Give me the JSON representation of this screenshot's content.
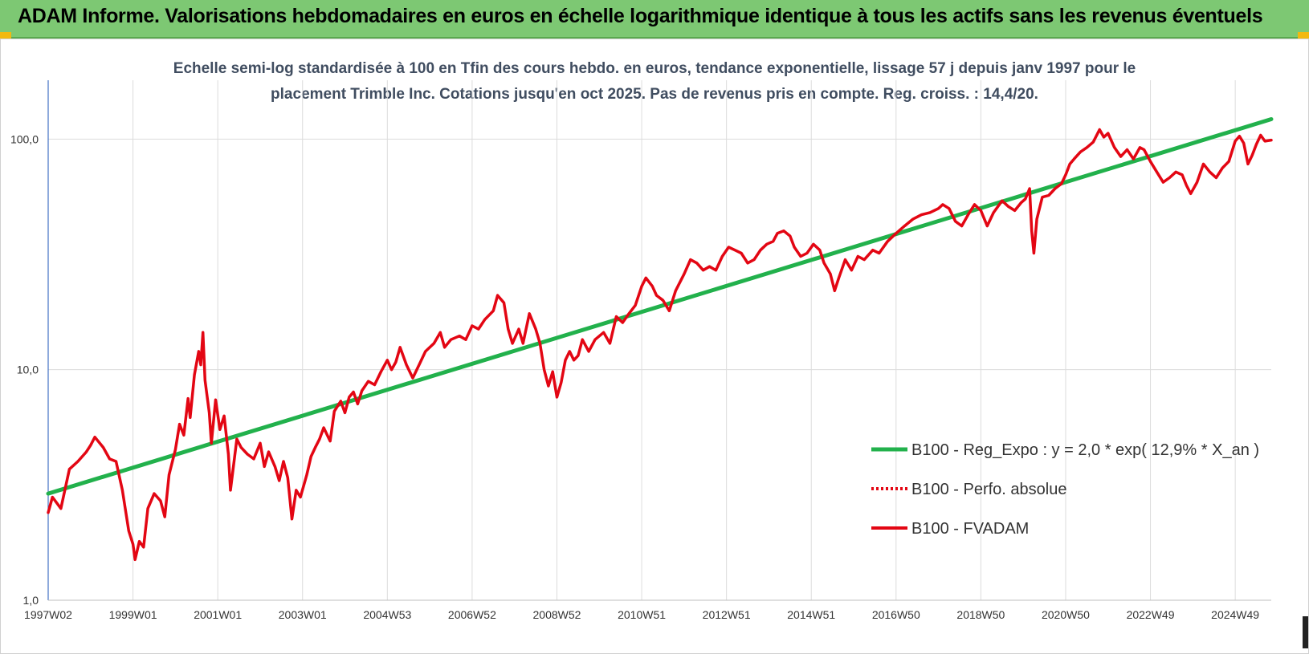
{
  "header": {
    "title": "ADAM Informe. Valorisations hebdomadaires en euros en échelle logarithmique identique à tous les actifs sans les revenus éventuels"
  },
  "chart_data": {
    "type": "line",
    "subtitle_line1": "Echelle semi-log standardisée à 100 en Tfin des cours hebdo. en euros, tendance exponentielle, lissage 57 j depuis janv 1997 pour le",
    "subtitle_line2": "placement Trimble Inc. Cotations jusqu'en oct 2025. Pas de revenus pris en compte. Reg. croiss. : 14,4/20.",
    "y_scale": "log",
    "ylim": [
      1,
      180
    ],
    "y_ticks": [
      {
        "value": 1,
        "label": "1,0"
      },
      {
        "value": 10,
        "label": "10,0"
      },
      {
        "value": 100,
        "label": "100,0"
      }
    ],
    "x_range": [
      1997.0,
      2025.85
    ],
    "x_ticks": [
      {
        "x": 1997.0,
        "label": "1997W02"
      },
      {
        "x": 1999.0,
        "label": "1999W01"
      },
      {
        "x": 2001.0,
        "label": "2001W01"
      },
      {
        "x": 2003.0,
        "label": "2003W01"
      },
      {
        "x": 2005.0,
        "label": "2004W53"
      },
      {
        "x": 2007.0,
        "label": "2006W52"
      },
      {
        "x": 2009.0,
        "label": "2008W52"
      },
      {
        "x": 2011.0,
        "label": "2010W51"
      },
      {
        "x": 2013.0,
        "label": "2012W51"
      },
      {
        "x": 2015.0,
        "label": "2014W51"
      },
      {
        "x": 2017.0,
        "label": "2016W50"
      },
      {
        "x": 2019.0,
        "label": "2018W50"
      },
      {
        "x": 2021.0,
        "label": "2020W50"
      },
      {
        "x": 2023.0,
        "label": "2022W49"
      },
      {
        "x": 2025.0,
        "label": "2024W49"
      }
    ],
    "grid": true,
    "legend_position": "right-middle",
    "series": [
      {
        "name": "B100 - Reg_Expo : y = 2,0 * exp( 12,9% * X_an )",
        "color": "#22b14c",
        "style": "solid",
        "points": [
          [
            1997.0,
            2.9
          ],
          [
            2025.85,
            122
          ]
        ]
      },
      {
        "name": "B100 - Perfo. absolue",
        "color": "#e30613",
        "style": "dotted",
        "points": []
      },
      {
        "name": "B100 - FVADAM",
        "color": "#e30613",
        "style": "solid",
        "points": [
          [
            1997.0,
            2.4
          ],
          [
            1997.1,
            2.8
          ],
          [
            1997.3,
            2.5
          ],
          [
            1997.5,
            3.7
          ],
          [
            1997.7,
            4.0
          ],
          [
            1997.9,
            4.4
          ],
          [
            1998.0,
            4.7
          ],
          [
            1998.1,
            5.1
          ],
          [
            1998.3,
            4.6
          ],
          [
            1998.45,
            4.1
          ],
          [
            1998.6,
            4.0
          ],
          [
            1998.75,
            3.0
          ],
          [
            1998.9,
            2.0
          ],
          [
            1999.0,
            1.75
          ],
          [
            1999.05,
            1.5
          ],
          [
            1999.15,
            1.8
          ],
          [
            1999.25,
            1.7
          ],
          [
            1999.35,
            2.5
          ],
          [
            1999.5,
            2.9
          ],
          [
            1999.65,
            2.7
          ],
          [
            1999.75,
            2.3
          ],
          [
            1999.85,
            3.5
          ],
          [
            2000.0,
            4.5
          ],
          [
            2000.1,
            5.8
          ],
          [
            2000.2,
            5.2
          ],
          [
            2000.3,
            7.5
          ],
          [
            2000.35,
            6.2
          ],
          [
            2000.45,
            9.5
          ],
          [
            2000.55,
            12.0
          ],
          [
            2000.6,
            10.5
          ],
          [
            2000.65,
            14.5
          ],
          [
            2000.7,
            9.0
          ],
          [
            2000.8,
            6.5
          ],
          [
            2000.85,
            4.8
          ],
          [
            2000.95,
            7.4
          ],
          [
            2001.05,
            5.5
          ],
          [
            2001.15,
            6.3
          ],
          [
            2001.25,
            4.3
          ],
          [
            2001.3,
            3.0
          ],
          [
            2001.45,
            5.0
          ],
          [
            2001.55,
            4.6
          ],
          [
            2001.7,
            4.3
          ],
          [
            2001.85,
            4.1
          ],
          [
            2002.0,
            4.8
          ],
          [
            2002.1,
            3.8
          ],
          [
            2002.2,
            4.4
          ],
          [
            2002.35,
            3.8
          ],
          [
            2002.45,
            3.3
          ],
          [
            2002.55,
            4.0
          ],
          [
            2002.65,
            3.4
          ],
          [
            2002.75,
            2.25
          ],
          [
            2002.85,
            3.0
          ],
          [
            2002.95,
            2.8
          ],
          [
            2003.1,
            3.5
          ],
          [
            2003.2,
            4.2
          ],
          [
            2003.3,
            4.6
          ],
          [
            2003.4,
            5.0
          ],
          [
            2003.5,
            5.6
          ],
          [
            2003.65,
            4.9
          ],
          [
            2003.75,
            6.6
          ],
          [
            2003.9,
            7.3
          ],
          [
            2004.0,
            6.5
          ],
          [
            2004.1,
            7.6
          ],
          [
            2004.2,
            8.0
          ],
          [
            2004.3,
            7.1
          ],
          [
            2004.4,
            8.1
          ],
          [
            2004.55,
            8.9
          ],
          [
            2004.7,
            8.6
          ],
          [
            2004.85,
            9.8
          ],
          [
            2005.0,
            11.0
          ],
          [
            2005.1,
            10.0
          ],
          [
            2005.2,
            10.8
          ],
          [
            2005.3,
            12.5
          ],
          [
            2005.45,
            10.5
          ],
          [
            2005.6,
            9.2
          ],
          [
            2005.75,
            10.5
          ],
          [
            2005.9,
            12.0
          ],
          [
            2006.1,
            13.0
          ],
          [
            2006.25,
            14.5
          ],
          [
            2006.35,
            12.5
          ],
          [
            2006.5,
            13.5
          ],
          [
            2006.7,
            14.0
          ],
          [
            2006.85,
            13.5
          ],
          [
            2007.0,
            15.5
          ],
          [
            2007.15,
            15.0
          ],
          [
            2007.3,
            16.5
          ],
          [
            2007.5,
            18.0
          ],
          [
            2007.6,
            21.0
          ],
          [
            2007.75,
            19.5
          ],
          [
            2007.85,
            15.0
          ],
          [
            2007.95,
            13.0
          ],
          [
            2008.1,
            15.0
          ],
          [
            2008.2,
            13.0
          ],
          [
            2008.35,
            17.5
          ],
          [
            2008.5,
            15.0
          ],
          [
            2008.6,
            13.0
          ],
          [
            2008.7,
            10.0
          ],
          [
            2008.8,
            8.5
          ],
          [
            2008.9,
            9.8
          ],
          [
            2009.0,
            7.6
          ],
          [
            2009.1,
            8.8
          ],
          [
            2009.2,
            11.0
          ],
          [
            2009.3,
            12.0
          ],
          [
            2009.4,
            11.0
          ],
          [
            2009.5,
            11.5
          ],
          [
            2009.6,
            13.5
          ],
          [
            2009.75,
            12.0
          ],
          [
            2009.9,
            13.5
          ],
          [
            2010.1,
            14.5
          ],
          [
            2010.25,
            13.0
          ],
          [
            2010.4,
            17.0
          ],
          [
            2010.55,
            16.0
          ],
          [
            2010.7,
            17.5
          ],
          [
            2010.85,
            19.0
          ],
          [
            2011.0,
            23.0
          ],
          [
            2011.1,
            25.0
          ],
          [
            2011.25,
            23.0
          ],
          [
            2011.35,
            21.0
          ],
          [
            2011.5,
            20.0
          ],
          [
            2011.65,
            18.0
          ],
          [
            2011.8,
            22.0
          ],
          [
            2012.0,
            26.0
          ],
          [
            2012.15,
            30.0
          ],
          [
            2012.3,
            29.0
          ],
          [
            2012.45,
            27.0
          ],
          [
            2012.6,
            28.0
          ],
          [
            2012.75,
            27.0
          ],
          [
            2012.9,
            31.0
          ],
          [
            2013.05,
            34.0
          ],
          [
            2013.2,
            33.0
          ],
          [
            2013.35,
            32.0
          ],
          [
            2013.5,
            29.0
          ],
          [
            2013.65,
            30.0
          ],
          [
            2013.8,
            33.0
          ],
          [
            2013.95,
            35.0
          ],
          [
            2014.1,
            36.0
          ],
          [
            2014.2,
            39.0
          ],
          [
            2014.35,
            40.0
          ],
          [
            2014.5,
            38.0
          ],
          [
            2014.6,
            34.0
          ],
          [
            2014.75,
            31.0
          ],
          [
            2014.9,
            32.0
          ],
          [
            2015.05,
            35.0
          ],
          [
            2015.2,
            33.0
          ],
          [
            2015.3,
            29.0
          ],
          [
            2015.45,
            26.0
          ],
          [
            2015.55,
            22.0
          ],
          [
            2015.65,
            25.0
          ],
          [
            2015.8,
            30.0
          ],
          [
            2015.95,
            27.0
          ],
          [
            2016.1,
            31.0
          ],
          [
            2016.25,
            30.0
          ],
          [
            2016.45,
            33.0
          ],
          [
            2016.6,
            32.0
          ],
          [
            2016.8,
            36.0
          ],
          [
            2017.0,
            39.0
          ],
          [
            2017.2,
            42.0
          ],
          [
            2017.4,
            45.0
          ],
          [
            2017.6,
            47.0
          ],
          [
            2017.8,
            48.0
          ],
          [
            2018.0,
            50.0
          ],
          [
            2018.1,
            52.0
          ],
          [
            2018.25,
            50.0
          ],
          [
            2018.4,
            44.0
          ],
          [
            2018.55,
            42.0
          ],
          [
            2018.7,
            47.0
          ],
          [
            2018.85,
            52.0
          ],
          [
            2019.0,
            49.0
          ],
          [
            2019.15,
            42.0
          ],
          [
            2019.3,
            48.0
          ],
          [
            2019.5,
            54.0
          ],
          [
            2019.65,
            51.0
          ],
          [
            2019.8,
            49.0
          ],
          [
            2019.95,
            53.0
          ],
          [
            2020.05,
            55.0
          ],
          [
            2020.15,
            61.0
          ],
          [
            2020.2,
            40.0
          ],
          [
            2020.25,
            32.0
          ],
          [
            2020.32,
            45.0
          ],
          [
            2020.45,
            56.0
          ],
          [
            2020.6,
            57.0
          ],
          [
            2020.75,
            61.0
          ],
          [
            2020.9,
            64.0
          ],
          [
            2021.0,
            70.0
          ],
          [
            2021.1,
            78.0
          ],
          [
            2021.2,
            82.0
          ],
          [
            2021.35,
            88.0
          ],
          [
            2021.5,
            92.0
          ],
          [
            2021.65,
            97.0
          ],
          [
            2021.8,
            110.0
          ],
          [
            2021.9,
            102.0
          ],
          [
            2022.0,
            106.0
          ],
          [
            2022.15,
            92.0
          ],
          [
            2022.3,
            84.0
          ],
          [
            2022.45,
            90.0
          ],
          [
            2022.6,
            82.0
          ],
          [
            2022.75,
            92.0
          ],
          [
            2022.85,
            90.0
          ],
          [
            2023.0,
            80.0
          ],
          [
            2023.15,
            72.0
          ],
          [
            2023.3,
            65.0
          ],
          [
            2023.45,
            68.0
          ],
          [
            2023.6,
            72.0
          ],
          [
            2023.75,
            70.0
          ],
          [
            2023.85,
            63.0
          ],
          [
            2023.95,
            58.0
          ],
          [
            2024.1,
            65.0
          ],
          [
            2024.25,
            78.0
          ],
          [
            2024.4,
            72.0
          ],
          [
            2024.55,
            68.0
          ],
          [
            2024.7,
            75.0
          ],
          [
            2024.85,
            80.0
          ],
          [
            2025.0,
            98.0
          ],
          [
            2025.1,
            103.0
          ],
          [
            2025.2,
            96.0
          ],
          [
            2025.3,
            78.0
          ],
          [
            2025.4,
            85.0
          ],
          [
            2025.5,
            95.0
          ],
          [
            2025.6,
            104.0
          ],
          [
            2025.7,
            98.0
          ],
          [
            2025.85,
            99.0
          ]
        ]
      }
    ]
  }
}
